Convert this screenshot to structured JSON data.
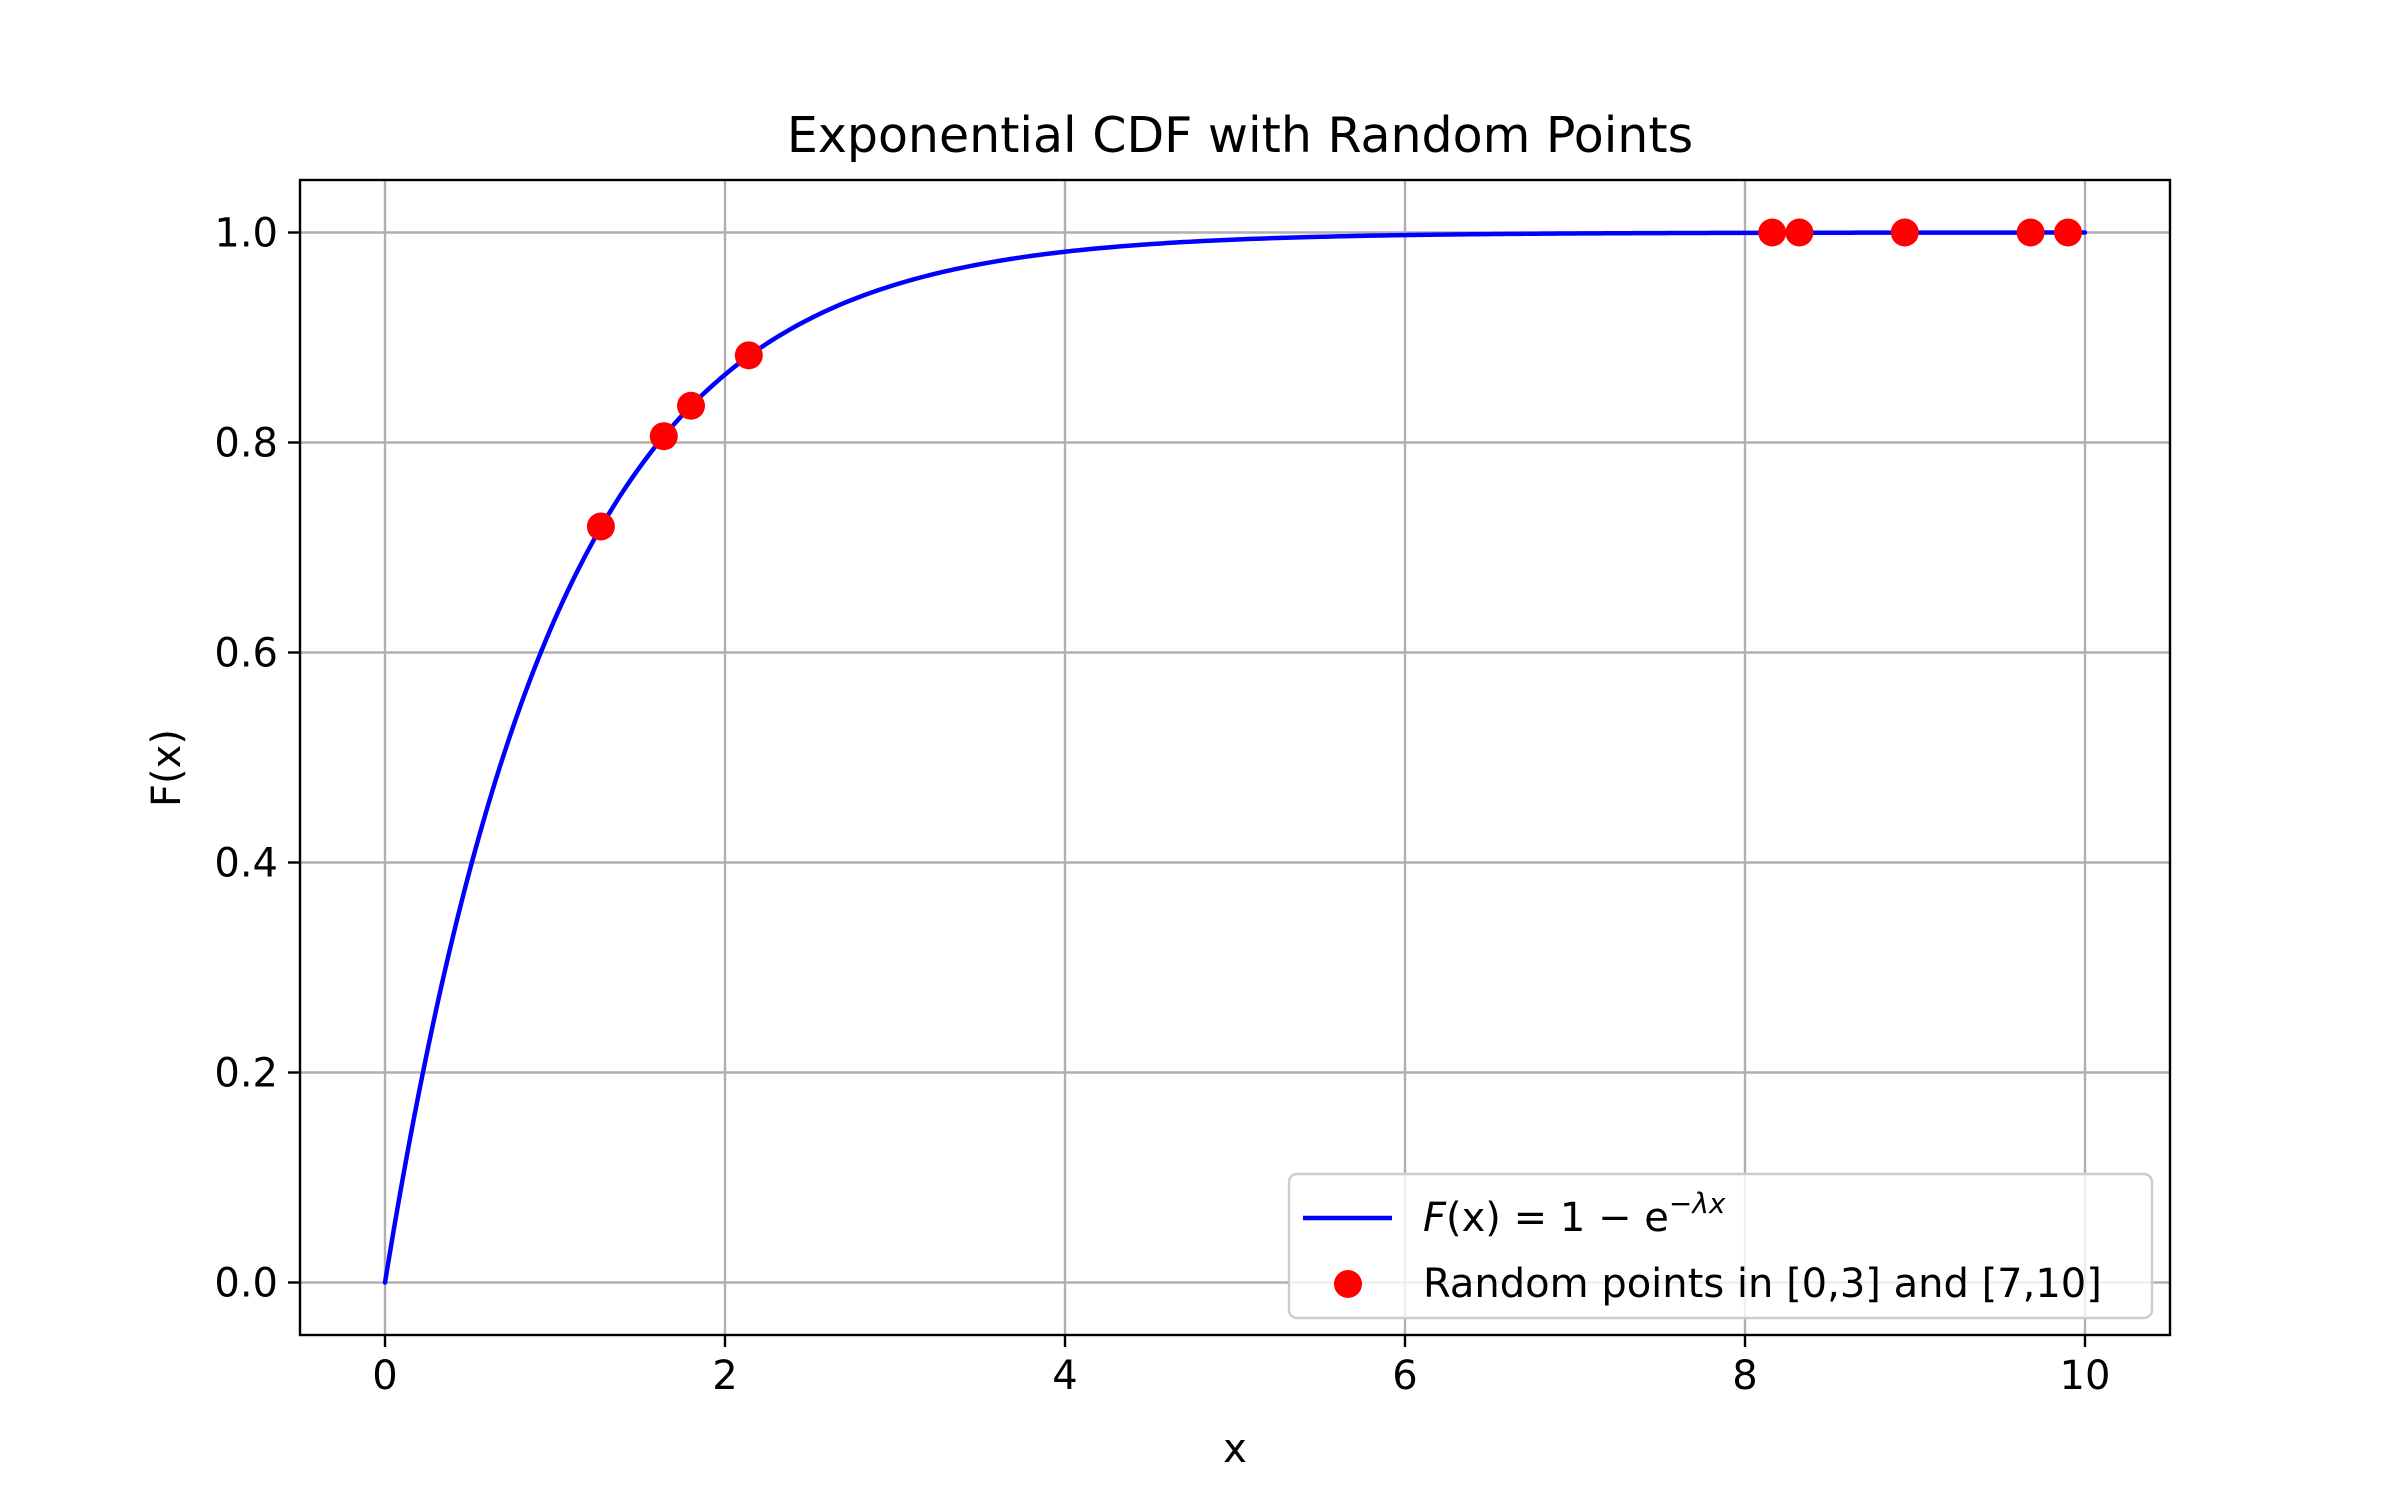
{
  "chart_data": {
    "type": "line",
    "title": "Exponential CDF with Random Points",
    "xlabel": "x",
    "ylabel": "F(x)",
    "xlim": [
      -0.5,
      10.5
    ],
    "ylim": [
      -0.05,
      1.05
    ],
    "xticks": [
      0,
      2,
      4,
      6,
      8,
      10
    ],
    "yticks": [
      0.0,
      0.2,
      0.4,
      0.6,
      0.8,
      1.0
    ],
    "xtick_labels": [
      "0",
      "2",
      "4",
      "6",
      "8",
      "10"
    ],
    "ytick_labels": [
      "0.0",
      "0.2",
      "0.4",
      "0.6",
      "0.8",
      "1.0"
    ],
    "grid": true,
    "legend_position": "lower-right",
    "lambda": 1,
    "series": [
      {
        "name": "F(x) = 1 − e^(−λx)",
        "kind": "line",
        "color": "#0000ff",
        "function": "1 - exp(-lambda * x)",
        "x_range": [
          0,
          10
        ]
      },
      {
        "name": "Random points in [0,3] and [7,10]",
        "kind": "scatter",
        "color": "#ff0000",
        "points": [
          {
            "x": 1.27,
            "y": 0.72
          },
          {
            "x": 1.64,
            "y": 0.806
          },
          {
            "x": 1.8,
            "y": 0.835
          },
          {
            "x": 2.14,
            "y": 0.883
          },
          {
            "x": 8.16,
            "y": 1.0
          },
          {
            "x": 8.32,
            "y": 1.0
          },
          {
            "x": 8.94,
            "y": 1.0
          },
          {
            "x": 9.68,
            "y": 1.0
          },
          {
            "x": 9.9,
            "y": 1.0
          }
        ]
      }
    ],
    "legend": {
      "line_label": {
        "lhs": "F",
        "arg": "(x)",
        "rhs": " = 1 − e",
        "exponent": "−λx"
      },
      "scatter_label": "Random points in [0,3] and [7,10]"
    }
  }
}
